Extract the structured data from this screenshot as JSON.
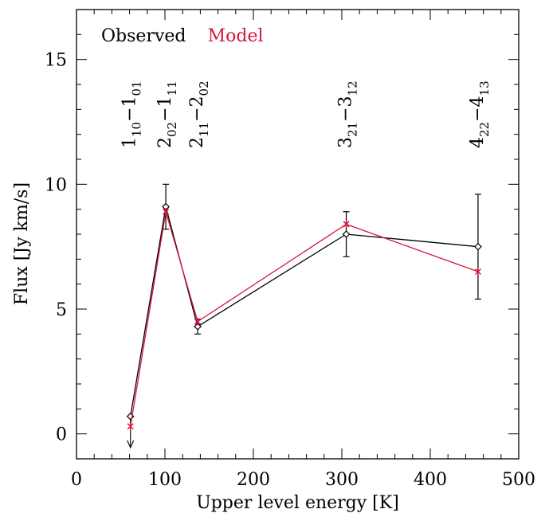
{
  "chart_data": {
    "type": "line",
    "xlabel": "Upper level energy [K]",
    "ylabel": "Flux [Jy km/s]",
    "xlim": [
      0,
      500
    ],
    "ylim": [
      -1,
      17
    ],
    "xticks": [
      0,
      100,
      200,
      300,
      400,
      500
    ],
    "yticks": [
      0,
      5,
      10,
      15
    ],
    "grid": false,
    "legend": {
      "placement": "top-left"
    },
    "series": [
      {
        "name": "Observed",
        "color": "#000000",
        "marker": "diamond",
        "x": [
          61,
          101,
          137,
          305,
          454
        ],
        "y": [
          0.7,
          9.1,
          4.3,
          8.0,
          7.5
        ],
        "err": [
          null,
          0.9,
          0.3,
          0.9,
          2.1
        ],
        "upper_limit": [
          true,
          false,
          false,
          false,
          false
        ]
      },
      {
        "name": "Model",
        "color": "#d6163d",
        "marker": "asterisk",
        "x": [
          61,
          101,
          137,
          305,
          454
        ],
        "y": [
          0.3,
          8.9,
          4.5,
          8.4,
          6.5
        ]
      }
    ],
    "transitions": [
      {
        "x": 61,
        "a": "1",
        "asub": "10",
        "b": "1",
        "bsub": "01"
      },
      {
        "x": 101,
        "a": "2",
        "asub": "02",
        "b": "1",
        "bsub": "11"
      },
      {
        "x": 137,
        "a": "2",
        "asub": "11",
        "b": "2",
        "bsub": "02"
      },
      {
        "x": 305,
        "a": "3",
        "asub": "21",
        "b": "3",
        "bsub": "12"
      },
      {
        "x": 454,
        "a": "4",
        "asub": "22",
        "b": "4",
        "bsub": "13"
      }
    ]
  }
}
